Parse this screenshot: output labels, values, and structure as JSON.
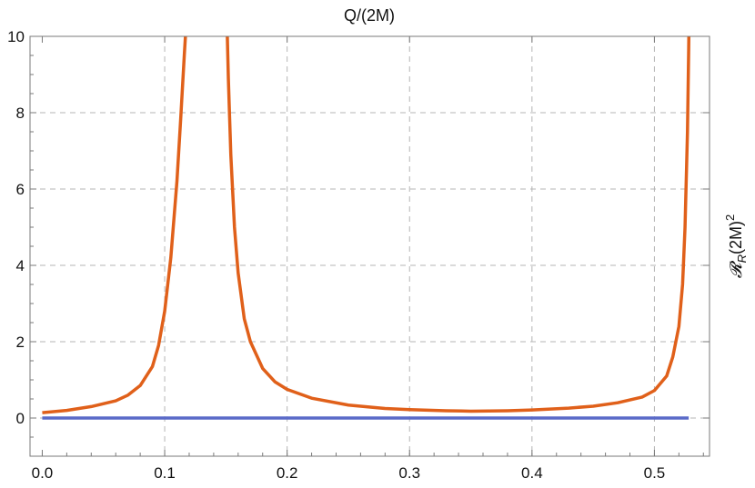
{
  "chart_data": {
    "type": "line",
    "title": "Q/(2M)",
    "xlabel": "",
    "ylabel": {
      "script": "𝓡",
      "subscript": "R",
      "main": "(2M)",
      "superscript": "2"
    },
    "xlim": [
      -0.01,
      0.545
    ],
    "ylim": [
      -1,
      10
    ],
    "x_ticks": [
      0.0,
      0.1,
      0.2,
      0.3,
      0.4,
      0.5
    ],
    "x_tick_labels": [
      "0.0",
      "0.1",
      "0.2",
      "0.3",
      "0.4",
      "0.5"
    ],
    "y_ticks": [
      0,
      2,
      4,
      6,
      8,
      10
    ],
    "y_tick_labels": [
      "0",
      "2",
      "4",
      "6",
      "8",
      "10"
    ],
    "grid": true,
    "grid_style": "dashed",
    "legend": "none",
    "series": [
      {
        "color": "#e0601a",
        "x": [
          0.0,
          0.02,
          0.04,
          0.06,
          0.07,
          0.08,
          0.09,
          0.095,
          0.1,
          0.105,
          0.11,
          0.113,
          0.116,
          0.1175,
          0.118,
          null,
          0.1505,
          0.151,
          0.152,
          0.154,
          0.157,
          0.16,
          0.165,
          0.17,
          0.18,
          0.19,
          0.2,
          0.22,
          0.25,
          0.28,
          0.3,
          0.33,
          0.35,
          0.38,
          0.4,
          0.43,
          0.45,
          0.47,
          0.49,
          0.5,
          0.51,
          0.515,
          0.52,
          0.523,
          0.525,
          0.527,
          0.528,
          0.5285
        ],
        "y": [
          0.14,
          0.2,
          0.3,
          0.45,
          0.6,
          0.85,
          1.35,
          1.9,
          2.8,
          4.2,
          6.2,
          7.8,
          9.5,
          10.3,
          11.0,
          null,
          11.0,
          10.2,
          8.9,
          6.9,
          5.0,
          3.8,
          2.6,
          2.0,
          1.3,
          0.95,
          0.75,
          0.52,
          0.34,
          0.25,
          0.22,
          0.19,
          0.18,
          0.19,
          0.21,
          0.26,
          0.31,
          0.4,
          0.55,
          0.72,
          1.1,
          1.6,
          2.4,
          3.5,
          5.0,
          7.5,
          9.7,
          11.0
        ]
      },
      {
        "color": "#5a6ac8",
        "x": [
          0.0,
          0.528
        ],
        "y": [
          0.0,
          0.0
        ]
      }
    ]
  }
}
